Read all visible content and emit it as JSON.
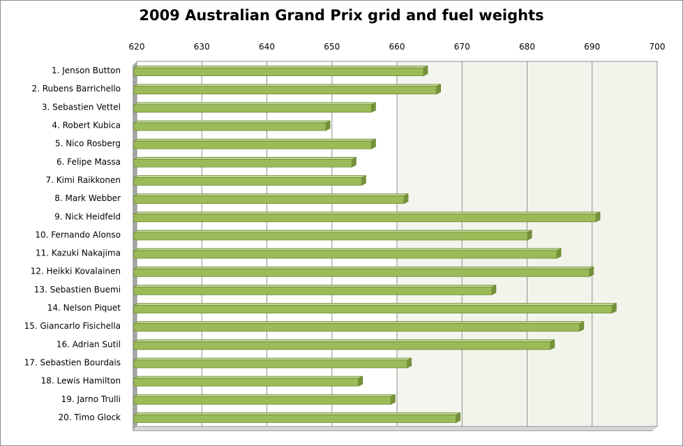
{
  "chart_data": {
    "type": "bar",
    "orientation": "horizontal",
    "title": "2009 Australian Grand Prix grid and fuel weights",
    "xlabel": "",
    "ylabel": "",
    "xlim": [
      620,
      700
    ],
    "x_ticks": [
      "620",
      "630",
      "640",
      "650",
      "660",
      "670",
      "680",
      "690",
      "700"
    ],
    "grid": true,
    "legend": "none",
    "categories": [
      "1. Jenson Button",
      "2. Rubens Barrichello",
      "3. Sebastien Vettel",
      "4. Robert Kubica",
      "5. Nico Rosberg",
      "6. Felipe Massa",
      "7. Kimi Raikkonen",
      "8. Mark Webber",
      "9. Nick Heidfeld",
      "10. Fernando Alonso",
      "11. Kazuki Nakajima",
      "12. Heikki Kovalainen",
      "13. Sebastien Buemi",
      "14. Nelson Piquet",
      "15. Giancarlo Fisichella",
      "16. Adrian Sutil",
      "17. Sebastien Bourdais",
      "18. Lewis Hamilton",
      "19. Jarno Trulli",
      "20. Timo Glock"
    ],
    "values": [
      664.5,
      666.5,
      656.5,
      649.5,
      656.5,
      653.5,
      655,
      661.5,
      691,
      680.5,
      685,
      690,
      675,
      693.5,
      688.5,
      684,
      662,
      654.5,
      659.5,
      669.5
    ],
    "colors": {
      "bar": "#9bbb59",
      "bar_top": "#c3d69b",
      "bar_side": "#76923c",
      "bar_edge": "#6b8a2e",
      "plot_band_light": "#ffffff",
      "plot_band_dark": "#f2f4ec",
      "grid": "#8f8f8f",
      "wall_shadow": "#a6a6a6"
    }
  }
}
